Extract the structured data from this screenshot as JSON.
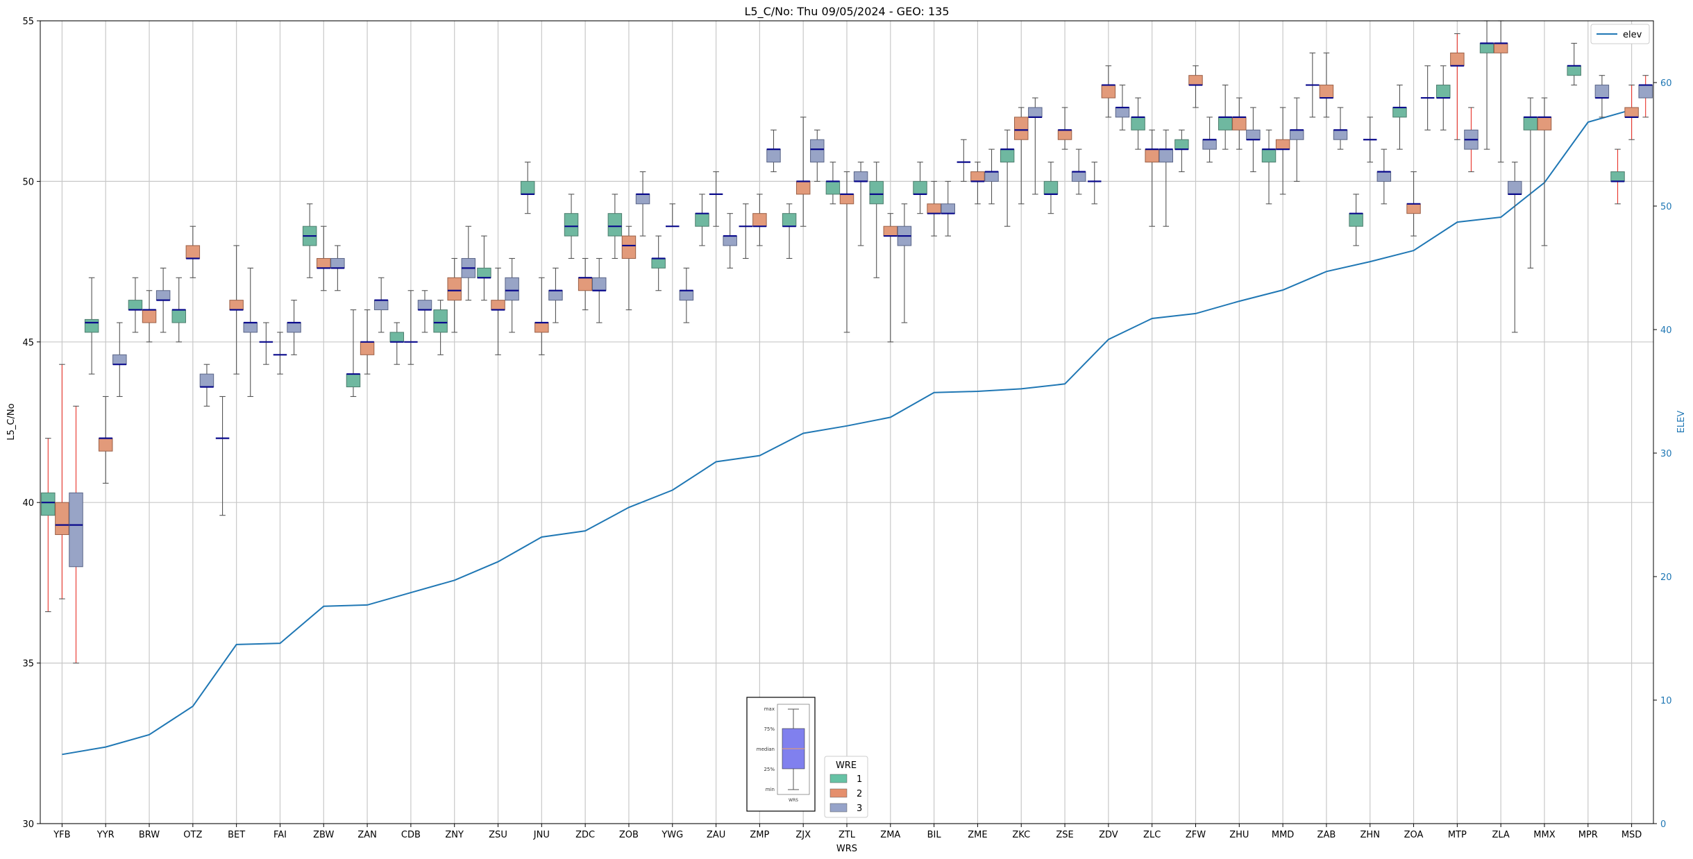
{
  "chart_data": {
    "type": "box",
    "title": "L5_C/No: Thu 09/05/2024 - GEO: 135",
    "xlabel": "WRS",
    "ylabel": "L5_C/No",
    "ylabel_right": "ELEV",
    "ylim": [
      30,
      55
    ],
    "ylim_right": [
      0,
      65
    ],
    "yticks": [
      30,
      35,
      40,
      45,
      50,
      55
    ],
    "yticks_right": [
      0,
      10,
      20,
      30,
      40,
      50,
      60
    ],
    "categories": [
      "YFB",
      "YYR",
      "BRW",
      "OTZ",
      "BET",
      "FAI",
      "ZBW",
      "ZAN",
      "CDB",
      "ZNY",
      "ZSU",
      "JNU",
      "ZDC",
      "ZOB",
      "YWG",
      "ZAU",
      "ZMP",
      "ZJX",
      "ZTL",
      "ZMA",
      "BIL",
      "ZME",
      "ZKC",
      "ZSE",
      "ZDV",
      "ZLC",
      "ZFW",
      "ZHU",
      "MMD",
      "ZAB",
      "ZHN",
      "ZOA",
      "MTP",
      "ZLA",
      "MMX",
      "MPR",
      "MSD"
    ],
    "legend_elev": {
      "label": "elev",
      "placement": "upper right"
    },
    "legend_wre": {
      "title": "WRE",
      "labels": [
        "1",
        "2",
        "3"
      ],
      "placement": "lower center"
    },
    "wre_colors": [
      "#66c2a5",
      "#fc8d62",
      "#8da0cb"
    ],
    "inset_labels": [
      "max",
      "75%",
      "median",
      "25%",
      "min",
      "WRS"
    ],
    "elevation": [
      5.6,
      6.2,
      7.2,
      9.5,
      14.5,
      14.6,
      17.6,
      17.7,
      18.7,
      19.7,
      21.2,
      23.2,
      23.7,
      25.6,
      27.0,
      29.3,
      29.8,
      31.6,
      32.2,
      32.9,
      34.9,
      35.0,
      35.2,
      35.6,
      39.2,
      40.9,
      41.3,
      42.3,
      43.2,
      44.7,
      45.5,
      46.4,
      48.7,
      49.1,
      51.9,
      56.8,
      57.8
    ],
    "boxes": [
      {
        "cat": "YFB",
        "wre": 1,
        "min": 36.6,
        "q1": 39.6,
        "med": 40.0,
        "q3": 40.3,
        "max": 42.0,
        "whisker": "red"
      },
      {
        "cat": "YFB",
        "wre": 2,
        "min": 37.0,
        "q1": 39.0,
        "med": 39.3,
        "q3": 40.0,
        "max": 44.3,
        "whisker": "red"
      },
      {
        "cat": "YFB",
        "wre": 3,
        "min": 35.0,
        "q1": 38.0,
        "med": 39.3,
        "q3": 40.3,
        "max": 43.0,
        "whisker": "red"
      },
      {
        "cat": "YYR",
        "wre": 1,
        "min": 44.0,
        "q1": 45.3,
        "med": 45.6,
        "q3": 45.7,
        "max": 47.0
      },
      {
        "cat": "YYR",
        "wre": 2,
        "min": 40.6,
        "q1": 41.6,
        "med": 42.0,
        "q3": 42.0,
        "max": 43.3
      },
      {
        "cat": "YYR",
        "wre": 3,
        "min": 43.3,
        "q1": 44.3,
        "med": 44.3,
        "q3": 44.6,
        "max": 45.6
      },
      {
        "cat": "BRW",
        "wre": 1,
        "min": 45.3,
        "q1": 46.0,
        "med": 46.0,
        "q3": 46.3,
        "max": 47.0
      },
      {
        "cat": "BRW",
        "wre": 2,
        "min": 45.0,
        "q1": 45.6,
        "med": 46.0,
        "q3": 46.0,
        "max": 46.6
      },
      {
        "cat": "BRW",
        "wre": 3,
        "min": 45.3,
        "q1": 46.3,
        "med": 46.3,
        "q3": 46.6,
        "max": 47.3
      },
      {
        "cat": "OTZ",
        "wre": 1,
        "min": 45.0,
        "q1": 45.6,
        "med": 46.0,
        "q3": 46.0,
        "max": 47.0
      },
      {
        "cat": "OTZ",
        "wre": 2,
        "min": 47.0,
        "q1": 47.6,
        "med": 47.6,
        "q3": 48.0,
        "max": 48.6
      },
      {
        "cat": "OTZ",
        "wre": 3,
        "min": 43.0,
        "q1": 43.6,
        "med": 43.6,
        "q3": 44.0,
        "max": 44.3
      },
      {
        "cat": "BET",
        "wre": 1,
        "min": 39.6,
        "q1": 42.0,
        "med": 42.0,
        "q3": 42.0,
        "max": 43.3
      },
      {
        "cat": "BET",
        "wre": 2,
        "min": 44.0,
        "q1": 46.0,
        "med": 46.0,
        "q3": 46.3,
        "max": 48.0
      },
      {
        "cat": "BET",
        "wre": 3,
        "min": 43.3,
        "q1": 45.3,
        "med": 45.6,
        "q3": 45.6,
        "max": 47.3
      },
      {
        "cat": "FAI",
        "wre": 1,
        "min": 44.3,
        "q1": 45.0,
        "med": 45.0,
        "q3": 45.0,
        "max": 45.6
      },
      {
        "cat": "FAI",
        "wre": 2,
        "min": 44.0,
        "q1": 44.6,
        "med": 44.6,
        "q3": 44.6,
        "max": 45.3
      },
      {
        "cat": "FAI",
        "wre": 3,
        "min": 44.6,
        "q1": 45.3,
        "med": 45.6,
        "q3": 45.6,
        "max": 46.3
      },
      {
        "cat": "ZBW",
        "wre": 1,
        "min": 47.0,
        "q1": 48.0,
        "med": 48.3,
        "q3": 48.6,
        "max": 49.3
      },
      {
        "cat": "ZBW",
        "wre": 2,
        "min": 46.6,
        "q1": 47.3,
        "med": 47.3,
        "q3": 47.6,
        "max": 48.6
      },
      {
        "cat": "ZBW",
        "wre": 3,
        "min": 46.6,
        "q1": 47.3,
        "med": 47.3,
        "q3": 47.6,
        "max": 48.0
      },
      {
        "cat": "ZAN",
        "wre": 1,
        "min": 43.3,
        "q1": 43.6,
        "med": 44.0,
        "q3": 44.0,
        "max": 46.0
      },
      {
        "cat": "ZAN",
        "wre": 2,
        "min": 44.0,
        "q1": 44.6,
        "med": 45.0,
        "q3": 45.0,
        "max": 46.0
      },
      {
        "cat": "ZAN",
        "wre": 3,
        "min": 45.3,
        "q1": 46.0,
        "med": 46.3,
        "q3": 46.3,
        "max": 47.0
      },
      {
        "cat": "CDB",
        "wre": 1,
        "min": 44.3,
        "q1": 45.0,
        "med": 45.0,
        "q3": 45.3,
        "max": 45.6
      },
      {
        "cat": "CDB",
        "wre": 2,
        "min": 44.3,
        "q1": 45.0,
        "med": 45.0,
        "q3": 45.0,
        "max": 46.6
      },
      {
        "cat": "CDB",
        "wre": 3,
        "min": 45.3,
        "q1": 46.0,
        "med": 46.0,
        "q3": 46.3,
        "max": 46.6
      },
      {
        "cat": "ZNY",
        "wre": 1,
        "min": 44.6,
        "q1": 45.3,
        "med": 45.6,
        "q3": 46.0,
        "max": 46.3
      },
      {
        "cat": "ZNY",
        "wre": 2,
        "min": 45.3,
        "q1": 46.3,
        "med": 46.6,
        "q3": 47.0,
        "max": 47.6
      },
      {
        "cat": "ZNY",
        "wre": 3,
        "min": 46.3,
        "q1": 47.0,
        "med": 47.3,
        "q3": 47.6,
        "max": 48.6
      },
      {
        "cat": "ZSU",
        "wre": 1,
        "min": 46.3,
        "q1": 47.0,
        "med": 47.0,
        "q3": 47.3,
        "max": 48.3
      },
      {
        "cat": "ZSU",
        "wre": 2,
        "min": 44.6,
        "q1": 46.0,
        "med": 46.0,
        "q3": 46.3,
        "max": 47.3
      },
      {
        "cat": "ZSU",
        "wre": 3,
        "min": 45.3,
        "q1": 46.3,
        "med": 46.6,
        "q3": 47.0,
        "max": 47.6
      },
      {
        "cat": "JNU",
        "wre": 1,
        "min": 49.0,
        "q1": 49.6,
        "med": 49.6,
        "q3": 50.0,
        "max": 50.6
      },
      {
        "cat": "JNU",
        "wre": 2,
        "min": 44.6,
        "q1": 45.3,
        "med": 45.6,
        "q3": 45.6,
        "max": 47.0
      },
      {
        "cat": "JNU",
        "wre": 3,
        "min": 45.6,
        "q1": 46.3,
        "med": 46.6,
        "q3": 46.6,
        "max": 47.3
      },
      {
        "cat": "ZDC",
        "wre": 1,
        "min": 47.6,
        "q1": 48.3,
        "med": 48.6,
        "q3": 49.0,
        "max": 49.6
      },
      {
        "cat": "ZDC",
        "wre": 2,
        "min": 46.0,
        "q1": 46.6,
        "med": 47.0,
        "q3": 47.0,
        "max": 47.6
      },
      {
        "cat": "ZDC",
        "wre": 3,
        "min": 45.6,
        "q1": 46.6,
        "med": 46.6,
        "q3": 47.0,
        "max": 47.6
      },
      {
        "cat": "ZOB",
        "wre": 1,
        "min": 47.6,
        "q1": 48.3,
        "med": 48.6,
        "q3": 49.0,
        "max": 49.6
      },
      {
        "cat": "ZOB",
        "wre": 2,
        "min": 46.0,
        "q1": 47.6,
        "med": 48.0,
        "q3": 48.3,
        "max": 48.6
      },
      {
        "cat": "ZOB",
        "wre": 3,
        "min": 48.3,
        "q1": 49.3,
        "med": 49.6,
        "q3": 49.6,
        "max": 50.3
      },
      {
        "cat": "YWG",
        "wre": 1,
        "min": 46.6,
        "q1": 47.3,
        "med": 47.6,
        "q3": 47.6,
        "max": 48.3
      },
      {
        "cat": "YWG",
        "wre": 2,
        "min": 48.6,
        "q1": 48.6,
        "med": 48.6,
        "q3": 48.6,
        "max": 49.3
      },
      {
        "cat": "YWG",
        "wre": 3,
        "min": 45.6,
        "q1": 46.3,
        "med": 46.6,
        "q3": 46.6,
        "max": 47.3
      },
      {
        "cat": "ZAU",
        "wre": 1,
        "min": 48.0,
        "q1": 48.6,
        "med": 49.0,
        "q3": 49.0,
        "max": 49.6
      },
      {
        "cat": "ZAU",
        "wre": 2,
        "min": 48.6,
        "q1": 49.6,
        "med": 49.6,
        "q3": 49.6,
        "max": 50.3
      },
      {
        "cat": "ZAU",
        "wre": 3,
        "min": 47.3,
        "q1": 48.0,
        "med": 48.3,
        "q3": 48.3,
        "max": 49.0
      },
      {
        "cat": "ZMP",
        "wre": 1,
        "min": 47.6,
        "q1": 48.6,
        "med": 48.6,
        "q3": 48.6,
        "max": 49.3
      },
      {
        "cat": "ZMP",
        "wre": 2,
        "min": 48.0,
        "q1": 48.6,
        "med": 48.6,
        "q3": 49.0,
        "max": 49.6
      },
      {
        "cat": "ZMP",
        "wre": 3,
        "min": 50.3,
        "q1": 50.6,
        "med": 51.0,
        "q3": 51.0,
        "max": 51.6
      },
      {
        "cat": "ZJX",
        "wre": 1,
        "min": 47.6,
        "q1": 48.6,
        "med": 48.6,
        "q3": 49.0,
        "max": 49.3
      },
      {
        "cat": "ZJX",
        "wre": 2,
        "min": 48.6,
        "q1": 49.6,
        "med": 50.0,
        "q3": 50.0,
        "max": 52.0
      },
      {
        "cat": "ZJX",
        "wre": 3,
        "min": 50.0,
        "q1": 50.6,
        "med": 51.0,
        "q3": 51.3,
        "max": 51.6
      },
      {
        "cat": "ZTL",
        "wre": 1,
        "min": 49.3,
        "q1": 49.6,
        "med": 50.0,
        "q3": 50.0,
        "max": 50.6
      },
      {
        "cat": "ZTL",
        "wre": 2,
        "min": 45.3,
        "q1": 49.3,
        "med": 49.6,
        "q3": 49.6,
        "max": 50.3
      },
      {
        "cat": "ZTL",
        "wre": 3,
        "min": 48.0,
        "q1": 50.0,
        "med": 50.0,
        "q3": 50.3,
        "max": 50.6
      },
      {
        "cat": "ZMA",
        "wre": 1,
        "min": 47.0,
        "q1": 49.3,
        "med": 49.6,
        "q3": 50.0,
        "max": 50.6
      },
      {
        "cat": "ZMA",
        "wre": 2,
        "min": 45.0,
        "q1": 48.3,
        "med": 48.3,
        "q3": 48.6,
        "max": 49.0
      },
      {
        "cat": "ZMA",
        "wre": 3,
        "min": 45.6,
        "q1": 48.0,
        "med": 48.3,
        "q3": 48.6,
        "max": 49.3
      },
      {
        "cat": "BIL",
        "wre": 1,
        "min": 49.0,
        "q1": 49.6,
        "med": 49.6,
        "q3": 50.0,
        "max": 50.6
      },
      {
        "cat": "BIL",
        "wre": 2,
        "min": 48.3,
        "q1": 49.0,
        "med": 49.0,
        "q3": 49.3,
        "max": 50.0
      },
      {
        "cat": "BIL",
        "wre": 3,
        "min": 48.3,
        "q1": 49.0,
        "med": 49.0,
        "q3": 49.3,
        "max": 50.0
      },
      {
        "cat": "ZME",
        "wre": 1,
        "min": 50.0,
        "q1": 50.6,
        "med": 50.6,
        "q3": 50.6,
        "max": 51.3
      },
      {
        "cat": "ZME",
        "wre": 2,
        "min": 49.3,
        "q1": 50.0,
        "med": 50.0,
        "q3": 50.3,
        "max": 50.6
      },
      {
        "cat": "ZME",
        "wre": 3,
        "min": 49.3,
        "q1": 50.0,
        "med": 50.3,
        "q3": 50.3,
        "max": 51.0
      },
      {
        "cat": "ZKC",
        "wre": 1,
        "min": 48.6,
        "q1": 50.6,
        "med": 51.0,
        "q3": 51.0,
        "max": 51.6
      },
      {
        "cat": "ZKC",
        "wre": 2,
        "min": 49.3,
        "q1": 51.3,
        "med": 51.6,
        "q3": 52.0,
        "max": 52.3
      },
      {
        "cat": "ZKC",
        "wre": 3,
        "min": 49.6,
        "q1": 52.0,
        "med": 52.0,
        "q3": 52.3,
        "max": 52.6
      },
      {
        "cat": "ZSE",
        "wre": 1,
        "min": 49.0,
        "q1": 49.6,
        "med": 49.6,
        "q3": 50.0,
        "max": 50.6
      },
      {
        "cat": "ZSE",
        "wre": 2,
        "min": 51.0,
        "q1": 51.3,
        "med": 51.6,
        "q3": 51.6,
        "max": 52.3
      },
      {
        "cat": "ZSE",
        "wre": 3,
        "min": 49.6,
        "q1": 50.0,
        "med": 50.3,
        "q3": 50.3,
        "max": 51.0
      },
      {
        "cat": "ZDV",
        "wre": 1,
        "min": 49.3,
        "q1": 50.0,
        "med": 50.0,
        "q3": 50.0,
        "max": 50.6
      },
      {
        "cat": "ZDV",
        "wre": 2,
        "min": 52.0,
        "q1": 52.6,
        "med": 53.0,
        "q3": 53.0,
        "max": 53.6
      },
      {
        "cat": "ZDV",
        "wre": 3,
        "min": 51.6,
        "q1": 52.0,
        "med": 52.3,
        "q3": 52.3,
        "max": 53.0
      },
      {
        "cat": "ZLC",
        "wre": 1,
        "min": 51.0,
        "q1": 51.6,
        "med": 52.0,
        "q3": 52.0,
        "max": 52.6
      },
      {
        "cat": "ZLC",
        "wre": 2,
        "min": 48.6,
        "q1": 50.6,
        "med": 51.0,
        "q3": 51.0,
        "max": 51.6
      },
      {
        "cat": "ZLC",
        "wre": 3,
        "min": 48.6,
        "q1": 50.6,
        "med": 51.0,
        "q3": 51.0,
        "max": 51.6
      },
      {
        "cat": "ZFW",
        "wre": 1,
        "min": 50.3,
        "q1": 51.0,
        "med": 51.0,
        "q3": 51.3,
        "max": 51.6
      },
      {
        "cat": "ZFW",
        "wre": 2,
        "min": 52.3,
        "q1": 53.0,
        "med": 53.0,
        "q3": 53.3,
        "max": 53.6
      },
      {
        "cat": "ZFW",
        "wre": 3,
        "min": 50.6,
        "q1": 51.0,
        "med": 51.3,
        "q3": 51.3,
        "max": 52.0
      },
      {
        "cat": "ZHU",
        "wre": 1,
        "min": 51.0,
        "q1": 51.6,
        "med": 52.0,
        "q3": 52.0,
        "max": 53.0
      },
      {
        "cat": "ZHU",
        "wre": 2,
        "min": 51.0,
        "q1": 51.6,
        "med": 52.0,
        "q3": 52.0,
        "max": 52.6
      },
      {
        "cat": "ZHU",
        "wre": 3,
        "min": 50.3,
        "q1": 51.3,
        "med": 51.3,
        "q3": 51.6,
        "max": 52.3
      },
      {
        "cat": "MMD",
        "wre": 1,
        "min": 49.3,
        "q1": 50.6,
        "med": 51.0,
        "q3": 51.0,
        "max": 51.6
      },
      {
        "cat": "MMD",
        "wre": 2,
        "min": 49.6,
        "q1": 51.0,
        "med": 51.0,
        "q3": 51.3,
        "max": 52.3
      },
      {
        "cat": "MMD",
        "wre": 3,
        "min": 50.0,
        "q1": 51.3,
        "med": 51.6,
        "q3": 51.6,
        "max": 52.6
      },
      {
        "cat": "ZAB",
        "wre": 1,
        "min": 52.0,
        "q1": 53.0,
        "med": 53.0,
        "q3": 53.0,
        "max": 54.0
      },
      {
        "cat": "ZAB",
        "wre": 2,
        "min": 52.0,
        "q1": 52.6,
        "med": 52.6,
        "q3": 53.0,
        "max": 54.0
      },
      {
        "cat": "ZAB",
        "wre": 3,
        "min": 51.0,
        "q1": 51.3,
        "med": 51.6,
        "q3": 51.6,
        "max": 52.3
      },
      {
        "cat": "ZHN",
        "wre": 1,
        "min": 48.0,
        "q1": 48.6,
        "med": 49.0,
        "q3": 49.0,
        "max": 49.6
      },
      {
        "cat": "ZHN",
        "wre": 2,
        "min": 50.6,
        "q1": 51.3,
        "med": 51.3,
        "q3": 51.3,
        "max": 52.0
      },
      {
        "cat": "ZHN",
        "wre": 3,
        "min": 49.3,
        "q1": 50.0,
        "med": 50.3,
        "q3": 50.3,
        "max": 51.0
      },
      {
        "cat": "ZOA",
        "wre": 1,
        "min": 51.0,
        "q1": 52.0,
        "med": 52.3,
        "q3": 52.3,
        "max": 53.0
      },
      {
        "cat": "ZOA",
        "wre": 2,
        "min": 48.3,
        "q1": 49.0,
        "med": 49.3,
        "q3": 49.3,
        "max": 50.3
      },
      {
        "cat": "ZOA",
        "wre": 3,
        "min": 51.6,
        "q1": 52.6,
        "med": 52.6,
        "q3": 52.6,
        "max": 53.6
      },
      {
        "cat": "MTP",
        "wre": 1,
        "min": 51.6,
        "q1": 52.6,
        "med": 52.6,
        "q3": 53.0,
        "max": 53.6
      },
      {
        "cat": "MTP",
        "wre": 2,
        "min": 51.3,
        "q1": 53.6,
        "med": 53.6,
        "q3": 54.0,
        "max": 54.6,
        "whisker": "red"
      },
      {
        "cat": "MTP",
        "wre": 3,
        "min": 50.3,
        "q1": 51.0,
        "med": 51.3,
        "q3": 51.6,
        "max": 52.3,
        "whisker": "red"
      },
      {
        "cat": "ZLA",
        "wre": 1,
        "min": 51.0,
        "q1": 54.0,
        "med": 54.3,
        "q3": 54.3,
        "max": 55.0
      },
      {
        "cat": "ZLA",
        "wre": 2,
        "min": 50.6,
        "q1": 54.0,
        "med": 54.3,
        "q3": 54.3,
        "max": 55.0
      },
      {
        "cat": "ZLA",
        "wre": 3,
        "min": 45.3,
        "q1": 49.6,
        "med": 49.6,
        "q3": 50.0,
        "max": 50.6
      },
      {
        "cat": "MMX",
        "wre": 1,
        "min": 47.3,
        "q1": 51.6,
        "med": 52.0,
        "q3": 52.0,
        "max": 52.6
      },
      {
        "cat": "MMX",
        "wre": 2,
        "min": 48.0,
        "q1": 51.6,
        "med": 52.0,
        "q3": 52.0,
        "max": 52.6
      },
      {
        "cat": "MPR",
        "wre": 1,
        "min": 53.0,
        "q1": 53.3,
        "med": 53.6,
        "q3": 53.6,
        "max": 54.3
      },
      {
        "cat": "MPR",
        "wre": 3,
        "min": 52.0,
        "q1": 52.6,
        "med": 52.6,
        "q3": 53.0,
        "max": 53.3
      },
      {
        "cat": "MSD",
        "wre": 1,
        "min": 49.3,
        "q1": 50.0,
        "med": 50.0,
        "q3": 50.3,
        "max": 51.0,
        "whisker": "red"
      },
      {
        "cat": "MSD",
        "wre": 2,
        "min": 51.3,
        "q1": 52.0,
        "med": 52.0,
        "q3": 52.3,
        "max": 53.0,
        "whisker": "red"
      },
      {
        "cat": "MSD",
        "wre": 3,
        "min": 52.0,
        "q1": 52.6,
        "med": 53.0,
        "q3": 53.0,
        "max": 53.3,
        "whisker": "red"
      }
    ]
  }
}
